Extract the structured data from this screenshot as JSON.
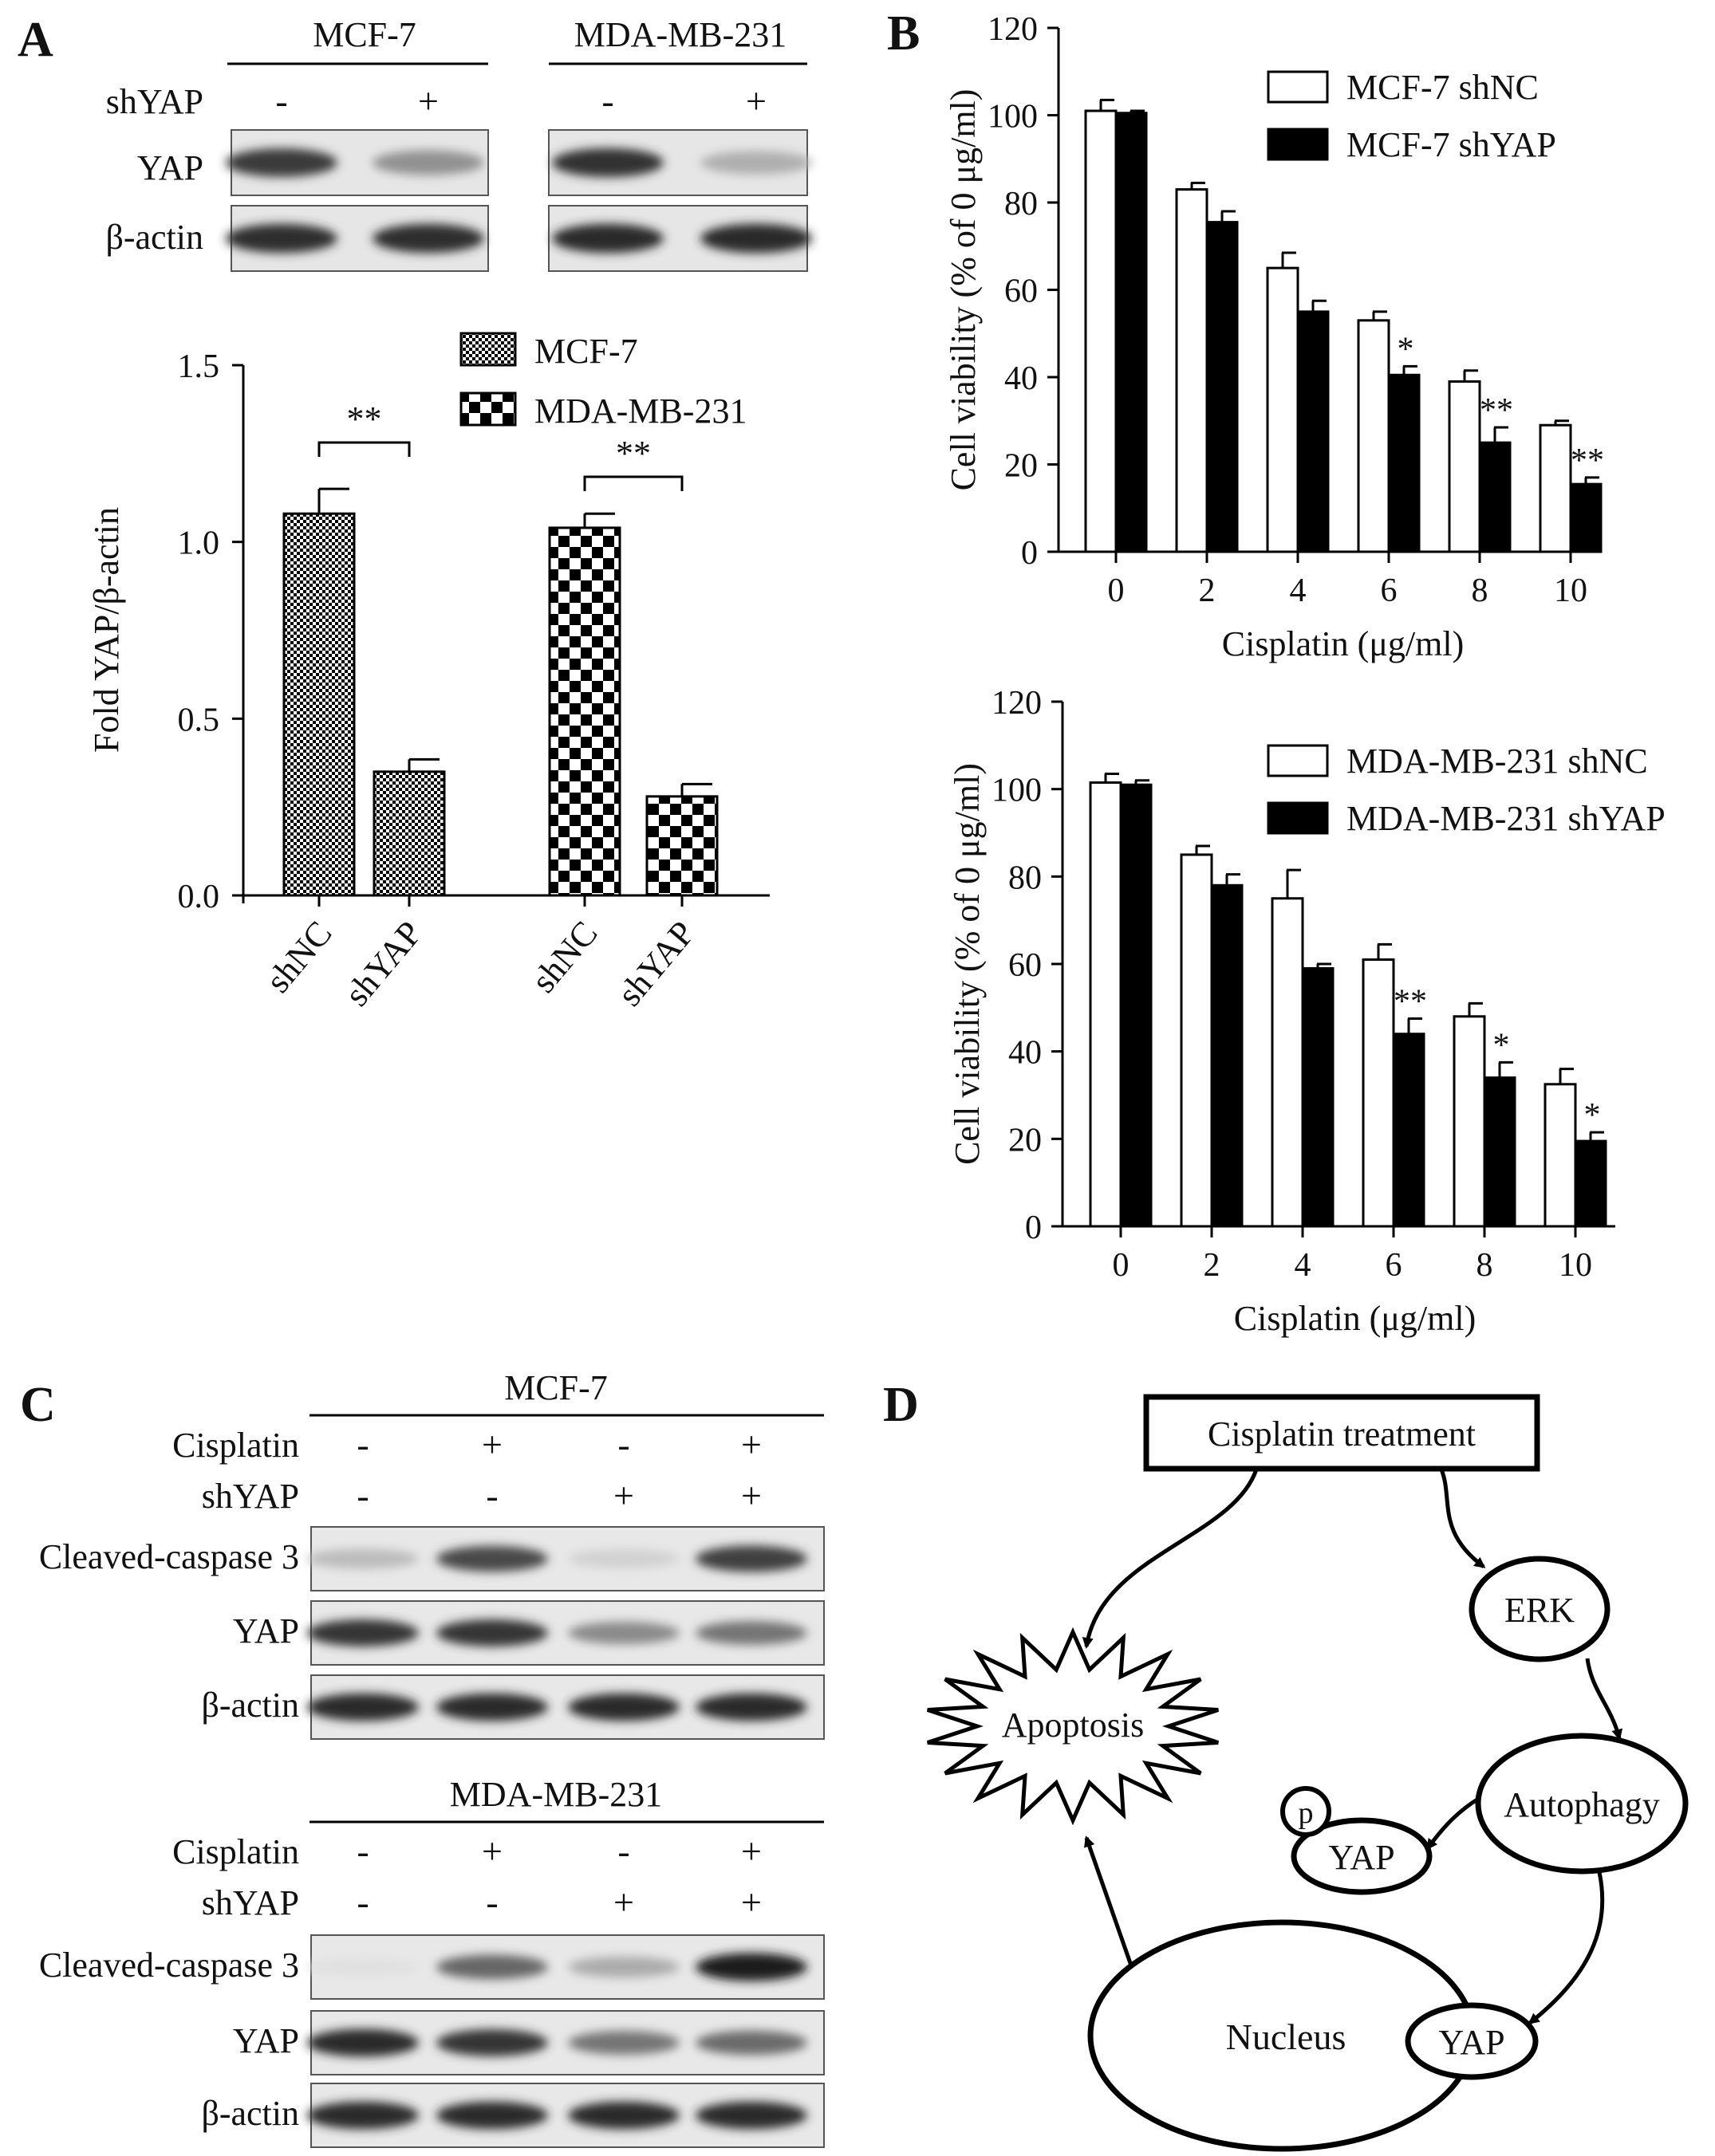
{
  "panels": {
    "A": {
      "letter": "A",
      "blot": {
        "cell_lines": [
          "MCF-7",
          "MDA-MB-231"
        ],
        "row_treat_label": "shYAP",
        "treat_marks": [
          "-",
          "+",
          "-",
          "+"
        ],
        "band_labels": [
          "YAP",
          "β-actin"
        ],
        "band_levels": {
          "YAP": [
            0.82,
            0.42,
            0.86,
            0.28
          ],
          "β-actin": [
            0.88,
            0.88,
            0.9,
            0.9
          ]
        }
      }
    },
    "B": {
      "letter": "B"
    },
    "C": {
      "letter": "C",
      "sections": [
        {
          "title": "MCF-7",
          "rows": [
            {
              "label": "Cisplatin",
              "marks": [
                "-",
                "+",
                "-",
                "+"
              ]
            },
            {
              "label": "shYAP",
              "marks": [
                "-",
                "-",
                "+",
                "+"
              ]
            }
          ],
          "bands": [
            {
              "label": "Cleaved-caspase 3",
              "levels": [
                0.22,
                0.75,
                0.12,
                0.8
              ]
            },
            {
              "label": "YAP",
              "levels": [
                0.85,
                0.85,
                0.45,
                0.55
              ]
            },
            {
              "label": "β-actin",
              "levels": [
                0.9,
                0.9,
                0.9,
                0.9
              ]
            }
          ]
        },
        {
          "title": "MDA-MB-231",
          "rows": [
            {
              "label": "Cisplatin",
              "marks": [
                "-",
                "+",
                "-",
                "+"
              ]
            },
            {
              "label": "shYAP",
              "marks": [
                "-",
                "-",
                "+",
                "+"
              ]
            }
          ],
          "bands": [
            {
              "label": "Cleaved-caspase 3",
              "levels": [
                0.05,
                0.62,
                0.3,
                0.95
              ]
            },
            {
              "label": "YAP",
              "levels": [
                0.9,
                0.85,
                0.55,
                0.6
              ]
            },
            {
              "label": "β-actin",
              "levels": [
                0.9,
                0.9,
                0.9,
                0.9
              ]
            }
          ]
        }
      ]
    },
    "D": {
      "letter": "D",
      "nodes": {
        "treatment": "Cisplatin treatment",
        "erk": "ERK",
        "autophagy": "Autophagy",
        "apoptosis": "Apoptosis",
        "phospho": "p",
        "yap_cyto": "YAP",
        "nucleus": "Nucleus",
        "yap_nuc": "YAP"
      }
    }
  },
  "chart_data": [
    {
      "type": "bar",
      "panel": "A",
      "categories": [
        "shNC",
        "shYAP",
        "shNC",
        "shYAP"
      ],
      "groups": [
        "MCF-7",
        "MDA-MB-231"
      ],
      "values": [
        1.08,
        0.35,
        1.04,
        0.28
      ],
      "errors": [
        0.07,
        0.035,
        0.04,
        0.035
      ],
      "ylabel": "Fold  YAP/β-actin",
      "ylim": [
        0,
        1.5
      ],
      "yticks": [
        "0.0",
        "0.5",
        "1.0",
        "1.5"
      ],
      "legend": [
        "MCF-7",
        "MDA-MB-231"
      ],
      "legend_position": "top-right",
      "significance": [
        "**",
        "**"
      ]
    },
    {
      "type": "bar",
      "panel": "B",
      "categories": [
        "0",
        "2",
        "4",
        "6",
        "8",
        "10"
      ],
      "series": [
        {
          "name": "MCF-7 shNC",
          "color": "#ffffff",
          "values": [
            101,
            83,
            65,
            53,
            39,
            29
          ],
          "errors": [
            2.5,
            1.5,
            3.5,
            2.0,
            2.5,
            1.0
          ],
          "marks": [
            "",
            "",
            "",
            "",
            "",
            ""
          ]
        },
        {
          "name": "MCF-7 shYAP",
          "color": "#000000",
          "values": [
            100.5,
            75.5,
            55,
            40.5,
            25,
            15.5
          ],
          "errors": [
            0.5,
            2.5,
            2.5,
            2.0,
            3.5,
            1.5
          ],
          "marks": [
            "",
            "",
            "",
            "*",
            "**",
            "**"
          ]
        }
      ],
      "xlabel": "Cisplatin (μg/ml)",
      "ylabel": "Cell viability (% of 0 μg/ml)",
      "ylim": [
        0,
        120
      ],
      "yticks": [
        "0",
        "20",
        "40",
        "60",
        "80",
        "100",
        "120"
      ],
      "legend_position": "top-right"
    },
    {
      "type": "bar",
      "panel": "B",
      "categories": [
        "0",
        "2",
        "4",
        "6",
        "8",
        "10"
      ],
      "series": [
        {
          "name": "MDA-MB-231 shNC",
          "color": "#ffffff",
          "values": [
            101.5,
            85,
            75,
            61,
            48,
            32.5
          ],
          "errors": [
            2.0,
            2.0,
            6.5,
            3.5,
            3.0,
            3.5
          ],
          "marks": [
            "",
            "",
            "",
            "",
            "",
            ""
          ]
        },
        {
          "name": "MDA-MB-231 shYAP",
          "color": "#000000",
          "values": [
            101,
            78,
            59,
            44,
            34,
            19.5
          ],
          "errors": [
            1.0,
            2.5,
            1.0,
            3.5,
            3.5,
            2.0
          ],
          "marks": [
            "",
            "",
            "",
            "**",
            "*",
            "*"
          ]
        }
      ],
      "xlabel": "Cisplatin (μg/ml)",
      "ylabel": "Cell viability (% of 0 μg/ml)",
      "ylim": [
        0,
        120
      ],
      "yticks": [
        "0",
        "20",
        "40",
        "60",
        "80",
        "100",
        "120"
      ],
      "legend_position": "top-right"
    }
  ]
}
